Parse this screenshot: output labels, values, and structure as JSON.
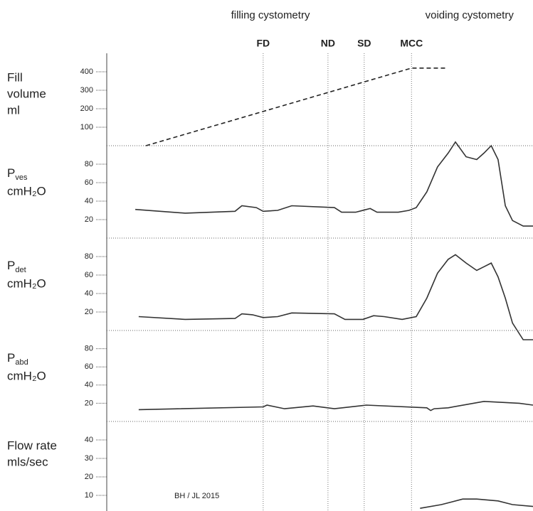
{
  "chart_data": [
    {
      "type": "line",
      "label_lines": [
        "Fill",
        "volume",
        "ml"
      ],
      "xlim": [
        0,
        100
      ],
      "ylim": [
        0,
        500
      ],
      "yticks": [
        100,
        200,
        300,
        400
      ],
      "dashed": true,
      "color": "#222",
      "x": [
        9.2,
        71.5,
        80
      ],
      "values": [
        0,
        420,
        420
      ]
    },
    {
      "type": "line",
      "symbol": "P",
      "subscript": "ves",
      "unit": "cmH₂O",
      "xlim": [
        0,
        100
      ],
      "ylim": [
        0,
        100
      ],
      "yticks": [
        20,
        40,
        60,
        80
      ],
      "dashed": false,
      "color": "#333",
      "x": [
        6.7,
        18.4,
        30.1,
        31.7,
        35.1,
        36.7,
        40.1,
        43.4,
        53.4,
        55.1,
        58.4,
        61.8,
        63.4,
        68.4,
        70.9,
        72.6,
        75.1,
        77.6,
        80.1,
        81.8,
        84.3,
        86.8,
        88.5,
        90.2,
        91.8,
        93.5,
        95.2,
        97.7,
        100
      ],
      "values": [
        31,
        27,
        29,
        35,
        33,
        29,
        30,
        35,
        33,
        28,
        28,
        32,
        28,
        28,
        30,
        33,
        50,
        77,
        92,
        104,
        88,
        85,
        92,
        100,
        85,
        35,
        19,
        13,
        13
      ]
    },
    {
      "type": "line",
      "symbol": "P",
      "subscript": "det",
      "unit": "cmH₂O",
      "xlim": [
        0,
        100
      ],
      "ylim": [
        0,
        100
      ],
      "yticks": [
        20,
        40,
        60,
        80
      ],
      "dashed": false,
      "color": "#333",
      "x": [
        7.5,
        18.4,
        30.1,
        31.7,
        34.2,
        36.7,
        40.1,
        43.4,
        53.4,
        55.9,
        60.1,
        62.6,
        65.1,
        69.3,
        72.6,
        75.1,
        77.6,
        80.1,
        81.8,
        84.3,
        86.8,
        88.5,
        90.2,
        91.8,
        93.5,
        95.2,
        97.7,
        100
      ],
      "values": [
        15,
        12,
        13,
        18,
        17,
        14,
        15,
        19,
        18,
        12,
        12,
        16,
        15,
        12,
        15,
        35,
        62,
        77,
        82,
        73,
        65,
        69,
        73,
        58,
        35,
        8,
        -10,
        -10
      ]
    },
    {
      "type": "line",
      "symbol": "P",
      "subscript": "abd",
      "unit": "cmH₂O",
      "xlim": [
        0,
        100
      ],
      "ylim": [
        0,
        100
      ],
      "yticks": [
        20,
        40,
        60,
        80
      ],
      "dashed": false,
      "color": "#333",
      "x": [
        7.5,
        36.7,
        37.6,
        41.7,
        48.4,
        53.4,
        60.9,
        75.1,
        76,
        76.8,
        80.1,
        88.5,
        96.8,
        100
      ],
      "values": [
        13,
        16,
        18,
        14,
        17,
        14,
        18,
        15,
        12,
        14,
        15,
        22,
        20,
        18
      ]
    },
    {
      "type": "line",
      "label_lines": [
        "Flow rate",
        "mls/sec"
      ],
      "xlim": [
        0,
        100
      ],
      "ylim": [
        0,
        50
      ],
      "yticks": [
        10,
        20,
        30,
        40
      ],
      "dashed": false,
      "color": "#333",
      "x": [
        73.5,
        78.5,
        83.5,
        86.8,
        91.8,
        95.2,
        100
      ],
      "values": [
        3,
        5,
        8,
        8,
        7,
        5,
        4
      ]
    }
  ],
  "phases": [
    {
      "label": "filling cystometry",
      "x": 38.4
    },
    {
      "label": "voiding cystometry",
      "x": 85.1
    }
  ],
  "events": [
    {
      "label": "FD",
      "x": 36.7
    },
    {
      "label": "ND",
      "x": 51.9
    },
    {
      "label": "SD",
      "x": 60.4
    },
    {
      "label": "MCC",
      "x": 71.5
    }
  ],
  "credit": "BH / JL 2015"
}
